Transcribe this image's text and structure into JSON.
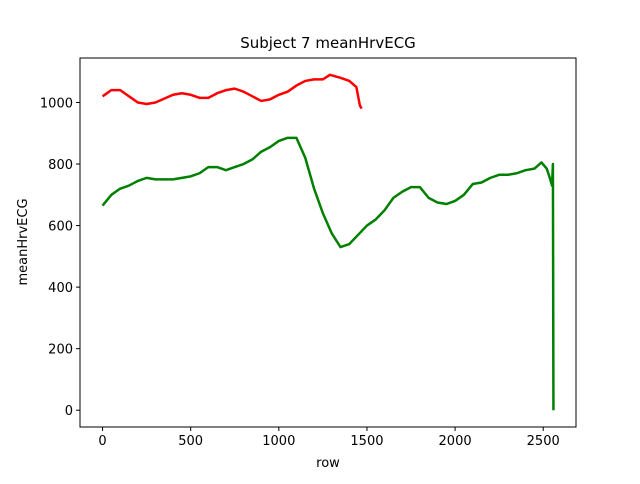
{
  "chart_data": {
    "type": "line",
    "title": "Subject 7 meanHrvECG",
    "x_label": "row",
    "y_label": "meanHrvECG",
    "xlim": [
      -128,
      2686
    ],
    "xticks": [
      0,
      500,
      1000,
      1500,
      2000,
      2500
    ],
    "ylim": [
      -54.5,
      1144.5
    ],
    "yticks": [
      0,
      200,
      400,
      600,
      800,
      1000
    ],
    "series": [
      {
        "color": "#ff0000",
        "x": [
          0,
          50,
          100,
          150,
          200,
          250,
          300,
          400,
          450,
          500,
          550,
          600,
          650,
          700,
          750,
          800,
          850,
          900,
          950,
          1000,
          1050,
          1100,
          1150,
          1200,
          1250,
          1290,
          1350,
          1400,
          1440,
          1460,
          1470
        ],
        "values": [
          1020,
          1040,
          1040,
          1020,
          1000,
          995,
          1000,
          1025,
          1030,
          1025,
          1015,
          1015,
          1030,
          1040,
          1045,
          1035,
          1020,
          1005,
          1010,
          1025,
          1035,
          1055,
          1070,
          1075,
          1075,
          1090,
          1080,
          1070,
          1050,
          990,
          980
        ]
      },
      {
        "color": "#008000",
        "x": [
          0,
          50,
          100,
          150,
          200,
          250,
          300,
          400,
          450,
          500,
          550,
          600,
          650,
          700,
          750,
          800,
          850,
          900,
          950,
          1000,
          1050,
          1100,
          1150,
          1200,
          1250,
          1300,
          1350,
          1400,
          1450,
          1500,
          1550,
          1600,
          1650,
          1700,
          1750,
          1800,
          1850,
          1900,
          1950,
          2000,
          2050,
          2100,
          2150,
          2200,
          2250,
          2300,
          2350,
          2400,
          2450,
          2490,
          2520,
          2540,
          2550,
          2555,
          2558
        ],
        "values": [
          665,
          700,
          720,
          730,
          745,
          755,
          750,
          750,
          755,
          760,
          770,
          790,
          790,
          780,
          790,
          800,
          815,
          840,
          855,
          875,
          885,
          885,
          820,
          720,
          640,
          575,
          530,
          540,
          570,
          600,
          620,
          650,
          690,
          710,
          725,
          725,
          690,
          675,
          670,
          680,
          700,
          735,
          740,
          755,
          765,
          765,
          770,
          780,
          785,
          805,
          785,
          750,
          730,
          800,
          0
        ]
      }
    ]
  }
}
